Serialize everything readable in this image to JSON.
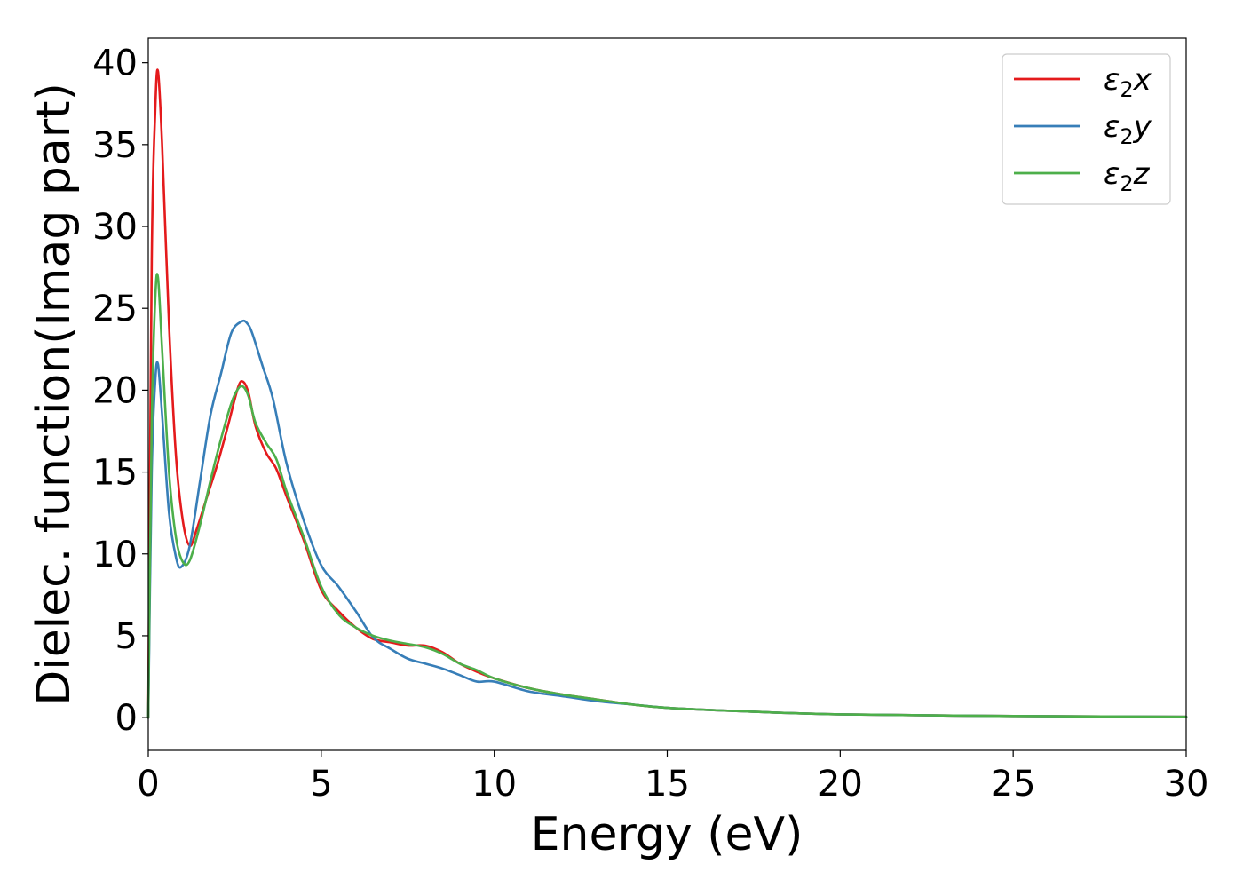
{
  "chart_data": {
    "type": "line",
    "title": "",
    "xlabel": "Energy (eV)",
    "ylabel": "Dielec. function(Imag part)",
    "xlim": [
      0,
      30
    ],
    "ylim": [
      -2,
      41.5
    ],
    "xticks": [
      0,
      5,
      10,
      15,
      20,
      25,
      30
    ],
    "yticks": [
      0,
      5,
      10,
      15,
      20,
      25,
      30,
      35,
      40
    ],
    "grid": false,
    "legend_position": "top-right",
    "series": [
      {
        "name": "ε₂x",
        "legend": {
          "base": "ε",
          "sub": "2",
          "suffix": "x"
        },
        "color": "#e41a1c",
        "x": [
          0,
          0.1,
          0.2,
          0.28,
          0.4,
          0.6,
          0.8,
          1.0,
          1.2,
          1.4,
          1.7,
          2.0,
          2.3,
          2.6,
          2.75,
          2.9,
          3.1,
          3.4,
          3.7,
          4.0,
          4.5,
          5.0,
          5.5,
          6.0,
          6.5,
          7.0,
          7.5,
          8.0,
          8.5,
          9.0,
          9.5,
          10.0,
          11.0,
          12.0,
          13.0,
          14.0,
          15.0,
          17.0,
          20.0,
          25.0,
          30.0
        ],
        "y": [
          0,
          28,
          37,
          39.5,
          35,
          24,
          16,
          12,
          10.5,
          11.5,
          13.5,
          15.5,
          17.8,
          20.2,
          20.5,
          19.8,
          17.8,
          16.2,
          15.2,
          13.5,
          10.8,
          7.8,
          6.5,
          5.5,
          4.8,
          4.6,
          4.4,
          4.4,
          4.0,
          3.3,
          2.8,
          2.4,
          1.8,
          1.4,
          1.1,
          0.8,
          0.6,
          0.4,
          0.2,
          0.1,
          0.05
        ]
      },
      {
        "name": "ε₂y",
        "legend": {
          "base": "ε",
          "sub": "2",
          "suffix": "y"
        },
        "color": "#377eb8",
        "x": [
          0,
          0.1,
          0.2,
          0.28,
          0.4,
          0.6,
          0.8,
          0.95,
          1.2,
          1.5,
          1.8,
          2.1,
          2.4,
          2.7,
          2.85,
          3.0,
          3.3,
          3.6,
          4.0,
          4.5,
          5.0,
          5.5,
          6.0,
          6.5,
          7.0,
          7.5,
          8.0,
          8.5,
          9.0,
          9.5,
          10.0,
          11.0,
          12.0,
          13.0,
          14.0,
          15.0,
          17.0,
          20.0,
          25.0,
          30.0
        ],
        "y": [
          0,
          15,
          20.5,
          21.6,
          18.5,
          12.5,
          9.8,
          9.2,
          10.5,
          14.5,
          18.5,
          21.0,
          23.5,
          24.2,
          24.1,
          23.5,
          21.5,
          19.5,
          15.5,
          12.0,
          9.3,
          8.0,
          6.5,
          4.9,
          4.2,
          3.6,
          3.3,
          3.0,
          2.6,
          2.2,
          2.2,
          1.6,
          1.3,
          1.0,
          0.8,
          0.6,
          0.4,
          0.2,
          0.1,
          0.05
        ]
      },
      {
        "name": "ε₂z",
        "legend": {
          "base": "ε",
          "sub": "2",
          "suffix": "z"
        },
        "color": "#4daf4a",
        "x": [
          0,
          0.1,
          0.2,
          0.28,
          0.4,
          0.6,
          0.8,
          1.0,
          1.2,
          1.5,
          1.8,
          2.1,
          2.4,
          2.6,
          2.75,
          2.9,
          3.1,
          3.4,
          3.7,
          4.0,
          4.5,
          5.0,
          5.5,
          6.0,
          6.5,
          7.0,
          7.5,
          8.0,
          8.5,
          9.0,
          9.5,
          10.0,
          11.0,
          12.0,
          13.0,
          14.0,
          15.0,
          17.0,
          20.0,
          25.0,
          30.0
        ],
        "y": [
          0,
          18,
          25.5,
          26.9,
          22.5,
          15,
          11,
          9.5,
          9.6,
          11.8,
          14.5,
          17.0,
          19.2,
          20.1,
          20.2,
          19.6,
          18.0,
          16.8,
          15.8,
          13.8,
          11.0,
          8.0,
          6.3,
          5.5,
          5.0,
          4.7,
          4.5,
          4.3,
          3.9,
          3.3,
          2.9,
          2.4,
          1.8,
          1.4,
          1.1,
          0.8,
          0.6,
          0.4,
          0.2,
          0.1,
          0.05
        ]
      }
    ]
  }
}
